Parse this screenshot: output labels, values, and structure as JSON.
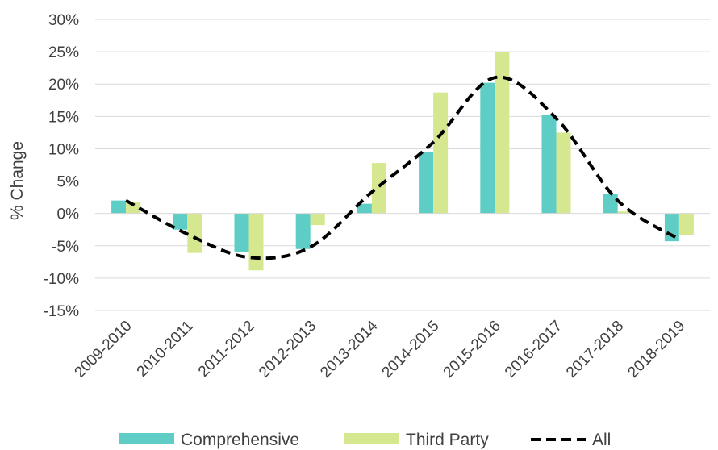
{
  "chart_data": {
    "type": "bar",
    "categories": [
      "2009-2010",
      "2010-2011",
      "2011-2012",
      "2012-2013",
      "2013-2014",
      "2014-2015",
      "2015-2016",
      "2016-2017",
      "2017-2018",
      "2018-2019"
    ],
    "series": [
      {
        "name": "Comprehensive",
        "type": "bar",
        "color": "#5ecdc5",
        "values": [
          2.0,
          -2.5,
          -6.0,
          -5.5,
          1.5,
          9.5,
          20.2,
          15.3,
          3.0,
          -4.3
        ]
      },
      {
        "name": "Third Party",
        "type": "bar",
        "color": "#d6e88f",
        "values": [
          1.8,
          -6.1,
          -8.8,
          -1.8,
          7.8,
          18.7,
          25.0,
          12.5,
          0.3,
          -3.4
        ]
      },
      {
        "name": "All",
        "type": "line",
        "style": "dashed",
        "color": "#000000",
        "values": [
          2.0,
          -3.2,
          -6.8,
          -5.2,
          3.3,
          11.0,
          21.0,
          14.7,
          2.0,
          -4.0
        ]
      }
    ],
    "ylabel": "% Change",
    "xlabel": "",
    "ylim": [
      -15,
      30
    ],
    "yticks": [
      30,
      25,
      20,
      15,
      10,
      5,
      0,
      -5,
      -10,
      -15
    ],
    "ytick_labels": [
      "30%",
      "25%",
      "20%",
      "15%",
      "10%",
      "5%",
      "0%",
      "-5%",
      "-10%",
      "-15%"
    ],
    "grid": true,
    "legend_position": "bottom"
  }
}
